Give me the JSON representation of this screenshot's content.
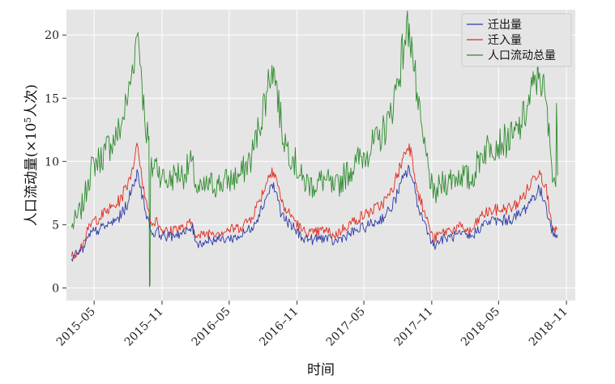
{
  "chart_data": {
    "type": "line",
    "title": "",
    "xlabel": "时间",
    "ylabel_main": "人口流动量(×10",
    "ylabel_sup": "5",
    "ylabel_tail": "人次)",
    "xlim": [
      "2015-02-15",
      "2018-11-25"
    ],
    "ylim": [
      -1,
      22
    ],
    "yticks": [
      0,
      5,
      10,
      15,
      20
    ],
    "ytick_labels": [
      "0",
      "5",
      "10",
      "15",
      "20"
    ],
    "xticks": [
      "2015-05-01",
      "2015-11-01",
      "2016-05-01",
      "2016-11-01",
      "2017-05-01",
      "2017-11-01",
      "2018-05-01",
      "2018-11-01"
    ],
    "xtick_labels": [
      "2015–05",
      "2015–11",
      "2016–05",
      "2016–11",
      "2017–05",
      "2017–11",
      "2018–05",
      "2018–11"
    ],
    "grid": true,
    "legend_position": "top-right",
    "background": "#e5e5e5",
    "series": [
      {
        "name": "迁出量",
        "color": "#2b3aa6",
        "points": [
          [
            "2015-03-01",
            2.3
          ],
          [
            "2015-03-15",
            2.7
          ],
          [
            "2015-03-25",
            2.9
          ],
          [
            "2015-04-05",
            3.2
          ],
          [
            "2015-04-15",
            4.0
          ],
          [
            "2015-05-01",
            4.5
          ],
          [
            "2015-05-15",
            4.6
          ],
          [
            "2015-06-01",
            4.9
          ],
          [
            "2015-06-15",
            5.1
          ],
          [
            "2015-07-01",
            5.4
          ],
          [
            "2015-07-15",
            5.8
          ],
          [
            "2015-08-01",
            6.8
          ],
          [
            "2015-08-10",
            7.6
          ],
          [
            "2015-08-20",
            8.6
          ],
          [
            "2015-08-28",
            9.1
          ],
          [
            "2015-09-05",
            8.0
          ],
          [
            "2015-09-15",
            6.2
          ],
          [
            "2015-09-25",
            5.5
          ],
          [
            "2015-10-05",
            4.2
          ],
          [
            "2015-10-15",
            4.5
          ],
          [
            "2015-11-01",
            4.2
          ],
          [
            "2015-11-20",
            4.0
          ],
          [
            "2015-12-10",
            4.3
          ],
          [
            "2016-01-01",
            4.3
          ],
          [
            "2016-01-20",
            4.8
          ],
          [
            "2016-02-05",
            3.5
          ],
          [
            "2016-02-20",
            3.6
          ],
          [
            "2016-03-10",
            3.8
          ],
          [
            "2016-04-01",
            3.8
          ],
          [
            "2016-05-01",
            3.9
          ],
          [
            "2016-06-01",
            4.1
          ],
          [
            "2016-07-01",
            4.8
          ],
          [
            "2016-07-20",
            5.8
          ],
          [
            "2016-08-10",
            7.2
          ],
          [
            "2016-08-25",
            8.2
          ],
          [
            "2016-09-05",
            7.6
          ],
          [
            "2016-09-20",
            5.8
          ],
          [
            "2016-10-05",
            5.2
          ],
          [
            "2016-10-20",
            4.8
          ],
          [
            "2016-11-15",
            4.0
          ],
          [
            "2016-12-15",
            3.8
          ],
          [
            "2017-01-15",
            4.0
          ],
          [
            "2017-02-10",
            3.6
          ],
          [
            "2017-03-10",
            4.1
          ],
          [
            "2017-04-10",
            4.5
          ],
          [
            "2017-05-10",
            4.9
          ],
          [
            "2017-06-10",
            5.3
          ],
          [
            "2017-07-10",
            6.1
          ],
          [
            "2017-08-01",
            7.5
          ],
          [
            "2017-08-20",
            8.9
          ],
          [
            "2017-09-01",
            9.5
          ],
          [
            "2017-09-10",
            8.5
          ],
          [
            "2017-09-25",
            6.5
          ],
          [
            "2017-10-10",
            5.3
          ],
          [
            "2017-10-25",
            4.3
          ],
          [
            "2017-11-05",
            3.3
          ],
          [
            "2017-11-25",
            3.8
          ],
          [
            "2017-12-20",
            4.0
          ],
          [
            "2018-01-20",
            4.2
          ],
          [
            "2018-02-15",
            4.0
          ],
          [
            "2018-03-15",
            4.9
          ],
          [
            "2018-04-10",
            5.3
          ],
          [
            "2018-05-10",
            5.3
          ],
          [
            "2018-06-10",
            5.5
          ],
          [
            "2018-07-01",
            5.9
          ],
          [
            "2018-07-20",
            6.6
          ],
          [
            "2018-08-05",
            7.3
          ],
          [
            "2018-08-20",
            7.7
          ],
          [
            "2018-09-05",
            6.8
          ],
          [
            "2018-09-20",
            4.8
          ],
          [
            "2018-10-01",
            4.0
          ],
          [
            "2018-10-08",
            4.2
          ]
        ]
      },
      {
        "name": "迁入量",
        "color": "#e02b20",
        "points": [
          [
            "2015-03-01",
            2.5
          ],
          [
            "2015-03-15",
            2.8
          ],
          [
            "2015-03-25",
            3.2
          ],
          [
            "2015-04-05",
            3.8
          ],
          [
            "2015-04-15",
            4.6
          ],
          [
            "2015-05-01",
            5.4
          ],
          [
            "2015-05-15",
            5.5
          ],
          [
            "2015-06-01",
            6.0
          ],
          [
            "2015-06-15",
            6.3
          ],
          [
            "2015-07-01",
            6.6
          ],
          [
            "2015-07-15",
            7.2
          ],
          [
            "2015-08-01",
            8.4
          ],
          [
            "2015-08-10",
            9.2
          ],
          [
            "2015-08-20",
            10.5
          ],
          [
            "2015-08-28",
            11.1
          ],
          [
            "2015-09-05",
            9.5
          ],
          [
            "2015-09-15",
            7.2
          ],
          [
            "2015-09-25",
            6.2
          ],
          [
            "2015-10-05",
            4.9
          ],
          [
            "2015-10-15",
            5.5
          ],
          [
            "2015-11-01",
            4.6
          ],
          [
            "2015-11-20",
            4.4
          ],
          [
            "2015-12-10",
            4.8
          ],
          [
            "2016-01-01",
            4.7
          ],
          [
            "2016-01-20",
            5.2
          ],
          [
            "2016-02-05",
            4.0
          ],
          [
            "2016-02-20",
            4.2
          ],
          [
            "2016-03-10",
            4.4
          ],
          [
            "2016-04-01",
            4.4
          ],
          [
            "2016-05-01",
            4.6
          ],
          [
            "2016-06-01",
            4.8
          ],
          [
            "2016-07-01",
            5.6
          ],
          [
            "2016-07-20",
            6.8
          ],
          [
            "2016-08-10",
            8.3
          ],
          [
            "2016-08-25",
            9.5
          ],
          [
            "2016-09-05",
            8.8
          ],
          [
            "2016-09-20",
            6.8
          ],
          [
            "2016-10-05",
            6.0
          ],
          [
            "2016-10-20",
            5.6
          ],
          [
            "2016-11-15",
            4.5
          ],
          [
            "2016-12-15",
            4.3
          ],
          [
            "2017-01-15",
            4.6
          ],
          [
            "2017-02-10",
            4.1
          ],
          [
            "2017-03-10",
            4.8
          ],
          [
            "2017-04-10",
            5.4
          ],
          [
            "2017-05-10",
            5.9
          ],
          [
            "2017-06-10",
            6.4
          ],
          [
            "2017-07-10",
            7.3
          ],
          [
            "2017-08-01",
            9.0
          ],
          [
            "2017-08-20",
            10.7
          ],
          [
            "2017-09-01",
            11.4
          ],
          [
            "2017-09-10",
            10.1
          ],
          [
            "2017-09-25",
            7.6
          ],
          [
            "2017-10-10",
            6.1
          ],
          [
            "2017-10-25",
            4.9
          ],
          [
            "2017-11-05",
            3.8
          ],
          [
            "2017-11-25",
            4.3
          ],
          [
            "2017-12-20",
            4.6
          ],
          [
            "2018-01-20",
            4.8
          ],
          [
            "2018-02-15",
            4.4
          ],
          [
            "2018-03-15",
            5.7
          ],
          [
            "2018-04-10",
            6.1
          ],
          [
            "2018-05-10",
            6.2
          ],
          [
            "2018-06-10",
            6.4
          ],
          [
            "2018-07-01",
            7.0
          ],
          [
            "2018-07-20",
            7.8
          ],
          [
            "2018-08-05",
            8.8
          ],
          [
            "2018-08-20",
            9.3
          ],
          [
            "2018-09-05",
            8.2
          ],
          [
            "2018-09-20",
            5.6
          ],
          [
            "2018-10-01",
            4.3
          ],
          [
            "2018-10-08",
            4.7
          ]
        ]
      },
      {
        "name": "人口流动总量",
        "color": "#2e8b2e",
        "points": [
          [
            "2015-03-01",
            4.8
          ],
          [
            "2015-03-15",
            5.5
          ],
          [
            "2015-03-25",
            6.1
          ],
          [
            "2015-04-05",
            7.0
          ],
          [
            "2015-04-15",
            8.6
          ],
          [
            "2015-05-01",
            9.9
          ],
          [
            "2015-05-15",
            10.1
          ],
          [
            "2015-06-01",
            10.9
          ],
          [
            "2015-06-15",
            11.4
          ],
          [
            "2015-07-01",
            12.0
          ],
          [
            "2015-07-15",
            13.0
          ],
          [
            "2015-08-01",
            15.2
          ],
          [
            "2015-08-10",
            16.8
          ],
          [
            "2015-08-20",
            19.1
          ],
          [
            "2015-08-28",
            20.2
          ],
          [
            "2015-09-05",
            17.5
          ],
          [
            "2015-09-15",
            13.4
          ],
          [
            "2015-09-25",
            11.7
          ],
          [
            "2015-09-28",
            0.1
          ],
          [
            "2015-10-01",
            9.1
          ],
          [
            "2015-10-15",
            10.0
          ],
          [
            "2015-11-01",
            8.8
          ],
          [
            "2015-11-20",
            8.4
          ],
          [
            "2015-12-10",
            9.1
          ],
          [
            "2016-01-01",
            9.0
          ],
          [
            "2016-01-20",
            10.0
          ],
          [
            "2016-02-05",
            7.5
          ],
          [
            "2016-02-20",
            7.8
          ],
          [
            "2016-03-10",
            8.2
          ],
          [
            "2016-04-01",
            8.2
          ],
          [
            "2016-05-01",
            8.5
          ],
          [
            "2016-06-01",
            8.9
          ],
          [
            "2016-07-01",
            10.4
          ],
          [
            "2016-07-20",
            12.6
          ],
          [
            "2016-08-10",
            15.5
          ],
          [
            "2016-08-25",
            17.6
          ],
          [
            "2016-09-05",
            16.4
          ],
          [
            "2016-09-20",
            12.6
          ],
          [
            "2016-10-05",
            11.2
          ],
          [
            "2016-10-20",
            10.4
          ],
          [
            "2016-11-15",
            8.5
          ],
          [
            "2016-12-15",
            8.1
          ],
          [
            "2017-01-15",
            8.6
          ],
          [
            "2017-02-10",
            7.7
          ],
          [
            "2017-03-10",
            8.9
          ],
          [
            "2017-04-10",
            9.9
          ],
          [
            "2017-05-10",
            10.8
          ],
          [
            "2017-06-10",
            11.7
          ],
          [
            "2017-07-10",
            13.4
          ],
          [
            "2017-08-01",
            16.5
          ],
          [
            "2017-08-20",
            19.6
          ],
          [
            "2017-09-01",
            20.9
          ],
          [
            "2017-09-10",
            18.6
          ],
          [
            "2017-09-25",
            14.1
          ],
          [
            "2017-10-10",
            11.4
          ],
          [
            "2017-10-25",
            9.2
          ],
          [
            "2017-11-05",
            7.1
          ],
          [
            "2017-11-25",
            8.1
          ],
          [
            "2017-12-20",
            8.6
          ],
          [
            "2018-01-20",
            9.0
          ],
          [
            "2018-02-15",
            8.4
          ],
          [
            "2018-03-15",
            10.6
          ],
          [
            "2018-04-10",
            11.4
          ],
          [
            "2018-05-10",
            11.5
          ],
          [
            "2018-06-10",
            11.9
          ],
          [
            "2018-07-01",
            12.9
          ],
          [
            "2018-07-20",
            14.4
          ],
          [
            "2018-08-05",
            16.1
          ],
          [
            "2018-08-20",
            17.0
          ],
          [
            "2018-09-05",
            15.0
          ],
          [
            "2018-09-20",
            10.4
          ],
          [
            "2018-10-01",
            8.3
          ],
          [
            "2018-10-05",
            14.6
          ],
          [
            "2018-10-08",
            8.9
          ]
        ]
      }
    ]
  }
}
